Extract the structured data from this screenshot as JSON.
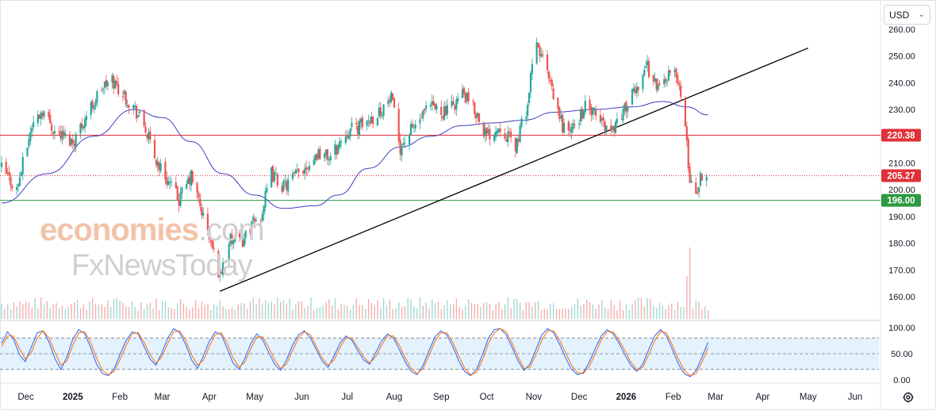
{
  "toolbar": {
    "currency": "USD"
  },
  "watermark": {
    "line1_main": "economies",
    "line1_suffix": ".com",
    "line2": "FxNewsToday"
  },
  "colors": {
    "up": "#26a69a",
    "down": "#ef5350",
    "ma": "#3f3fbf",
    "resistance": "#e0313a",
    "support": "#2c9a41",
    "trendline": "#000000",
    "k_line": "#2962ff",
    "d_line": "#ff6d00",
    "band": "#e3f2fd"
  },
  "chart_data": [
    {
      "type": "candlestick",
      "title": "",
      "currency": "USD",
      "x_tick_labels": [
        "Dec",
        "2025",
        "Feb",
        "Mar",
        "Apr",
        "May",
        "Jun",
        "Jul",
        "Aug",
        "Sep",
        "Oct",
        "Nov",
        "Dec",
        "2026",
        "Feb",
        "Mar",
        "Apr",
        "May",
        "Jun"
      ],
      "x_tick_dates": [
        "2024-12-01",
        "2025-01-01",
        "2025-02-01",
        "2025-03-01",
        "2025-04-01",
        "2025-05-01",
        "2025-06-01",
        "2025-07-01",
        "2025-08-01",
        "2025-09-01",
        "2025-10-01",
        "2025-11-01",
        "2025-12-01",
        "2026-01-01",
        "2026-02-01",
        "2026-03-01",
        "2026-04-01",
        "2026-05-01",
        "2026-06-01"
      ],
      "y_tick_labels": [
        "260.00",
        "250.00",
        "240.00",
        "230.00",
        "220.00",
        "210.00",
        "200.00",
        "190.00",
        "180.00",
        "170.00",
        "160.00"
      ],
      "y_ticks": [
        260,
        250,
        240,
        230,
        220,
        210,
        200,
        190,
        180,
        170,
        160
      ],
      "ylim": [
        155,
        262
      ],
      "price_path": [
        [
          "2024-11-15",
          208
        ],
        [
          "2024-11-25",
          200
        ],
        [
          "2024-12-05",
          224
        ],
        [
          "2024-12-12",
          230
        ],
        [
          "2024-12-20",
          222
        ],
        [
          "2025-01-01",
          218
        ],
        [
          "2025-01-10",
          228
        ],
        [
          "2025-01-20",
          238
        ],
        [
          "2025-01-27",
          241
        ],
        [
          "2025-02-03",
          236
        ],
        [
          "2025-02-10",
          231
        ],
        [
          "2025-02-17",
          224
        ],
        [
          "2025-02-24",
          212
        ],
        [
          "2025-03-05",
          203
        ],
        [
          "2025-03-12",
          196
        ],
        [
          "2025-03-20",
          205
        ],
        [
          "2025-03-28",
          190
        ],
        [
          "2025-04-03",
          178
        ],
        [
          "2025-04-08",
          168
        ],
        [
          "2025-04-14",
          181
        ],
        [
          "2025-04-22",
          180
        ],
        [
          "2025-04-28",
          186
        ],
        [
          "2025-05-05",
          190
        ],
        [
          "2025-05-12",
          206
        ],
        [
          "2025-05-20",
          201
        ],
        [
          "2025-06-02",
          208
        ],
        [
          "2025-06-12",
          214
        ],
        [
          "2025-06-20",
          212
        ],
        [
          "2025-07-01",
          222
        ],
        [
          "2025-07-10",
          224
        ],
        [
          "2025-07-20",
          228
        ],
        [
          "2025-07-30",
          234
        ],
        [
          "2025-08-05",
          216
        ],
        [
          "2025-08-12",
          222
        ],
        [
          "2025-08-25",
          231
        ],
        [
          "2025-09-05",
          229
        ],
        [
          "2025-09-15",
          236
        ],
        [
          "2025-09-25",
          228
        ],
        [
          "2025-10-01",
          220
        ],
        [
          "2025-10-10",
          224
        ],
        [
          "2025-10-20",
          216
        ],
        [
          "2025-10-28",
          232
        ],
        [
          "2025-11-02",
          255
        ],
        [
          "2025-11-08",
          248
        ],
        [
          "2025-11-14",
          234
        ],
        [
          "2025-11-20",
          224
        ],
        [
          "2025-11-26",
          222
        ],
        [
          "2025-12-05",
          231
        ],
        [
          "2025-12-15",
          226
        ],
        [
          "2025-12-22",
          222
        ],
        [
          "2026-01-02",
          232
        ],
        [
          "2026-01-08",
          238
        ],
        [
          "2026-01-14",
          247
        ],
        [
          "2026-01-22",
          238
        ],
        [
          "2026-01-30",
          244
        ],
        [
          "2026-02-04",
          242
        ],
        [
          "2026-02-07",
          232
        ],
        [
          "2026-02-09",
          222
        ],
        [
          "2026-02-12",
          204
        ],
        [
          "2026-02-16",
          199
        ],
        [
          "2026-02-20",
          206
        ],
        [
          "2026-02-23",
          205
        ]
      ],
      "last_price": 205.27,
      "series": [
        {
          "name": "",
          "kind": "moving-average",
          "points": [
            [
              "2024-11-15",
              195
            ],
            [
              "2024-12-15",
              206
            ],
            [
              "2025-01-15",
              220
            ],
            [
              "2025-02-10",
              230
            ],
            [
              "2025-03-01",
              227
            ],
            [
              "2025-03-20",
              218
            ],
            [
              "2025-04-10",
              206
            ],
            [
              "2025-05-01",
              198
            ],
            [
              "2025-05-20",
              193
            ],
            [
              "2025-06-10",
              194
            ],
            [
              "2025-06-25",
              198
            ],
            [
              "2025-07-15",
              208
            ],
            [
              "2025-08-05",
              216
            ],
            [
              "2025-08-25",
              220
            ],
            [
              "2025-09-15",
              224
            ],
            [
              "2025-10-05",
              225
            ],
            [
              "2025-10-25",
              226
            ],
            [
              "2025-11-15",
              229
            ],
            [
              "2025-12-10",
              230
            ],
            [
              "2026-01-05",
              231
            ],
            [
              "2026-01-25",
              233
            ],
            [
              "2026-02-10",
              231
            ],
            [
              "2026-02-24",
              228
            ]
          ]
        }
      ],
      "annotations": [
        {
          "kind": "horizontal-line",
          "value": 220.38,
          "label": "220.38",
          "color": "#e0313a"
        },
        {
          "kind": "horizontal-line",
          "value": 196.0,
          "label": "196.00",
          "color": "#2c9a41"
        },
        {
          "kind": "price-line",
          "value": 205.27,
          "label": "205.27",
          "color": "#e0313a"
        },
        {
          "kind": "trendline",
          "from": [
            "2025-04-08",
            162
          ],
          "to": [
            "2026-05-01",
            253
          ],
          "color": "#000000"
        }
      ],
      "volume_spikes": [
        {
          "date": "2025-04-07",
          "value": 1.0
        },
        {
          "date": "2025-04-09",
          "value": 1.0
        },
        {
          "date": "2025-08-01",
          "value": 0.78
        },
        {
          "date": "2025-10-10",
          "value": 0.7
        },
        {
          "date": "2025-11-01",
          "value": 1.2
        },
        {
          "date": "2025-11-07",
          "value": 0.8
        },
        {
          "date": "2026-02-10",
          "value": 0.9
        },
        {
          "date": "2026-02-12",
          "value": 1.5
        }
      ]
    },
    {
      "type": "line",
      "title": "",
      "y_tick_labels": [
        "100.00",
        "50.00",
        "0.00"
      ],
      "y_ticks": [
        100,
        50,
        0
      ],
      "ylim": [
        -5,
        105
      ],
      "band": [
        20,
        80
      ],
      "series": [
        {
          "name": "",
          "values": [
            70,
            92,
            78,
            48,
            35,
            62,
            90,
            94,
            72,
            40,
            20,
            44,
            78,
            96,
            88,
            62,
            30,
            12,
            8,
            22,
            50,
            76,
            92,
            88,
            64,
            40,
            28,
            52,
            80,
            98,
            90,
            68,
            38,
            22,
            46,
            74,
            92,
            86,
            60,
            32,
            20,
            42,
            70,
            88,
            76,
            52,
            30,
            18,
            38,
            66,
            86,
            94,
            80,
            58,
            36,
            24,
            46,
            70,
            84,
            76,
            56,
            38,
            30,
            52,
            74,
            88,
            80,
            58,
            34,
            16,
            10,
            28,
            56,
            82,
            94,
            86,
            64,
            36,
            16,
            8,
            20,
            48,
            80,
            96,
            98,
            86,
            62,
            36,
            18,
            30,
            58,
            86,
            98,
            90,
            68,
            42,
            20,
            10,
            14,
            34,
            60,
            84,
            96,
            88,
            70,
            48,
            28,
            16,
            30,
            58,
            84,
            96,
            84,
            58,
            30,
            12,
            6,
            18,
            44,
            72
          ]
        },
        {
          "name": "",
          "values": [
            64,
            84,
            84,
            60,
            40,
            52,
            80,
            94,
            80,
            52,
            28,
            36,
            66,
            90,
            92,
            72,
            42,
            18,
            10,
            16,
            40,
            66,
            88,
            90,
            72,
            48,
            32,
            44,
            70,
            92,
            94,
            76,
            48,
            28,
            38,
            64,
            86,
            90,
            70,
            42,
            24,
            34,
            60,
            82,
            82,
            62,
            38,
            22,
            30,
            56,
            80,
            92,
            86,
            64,
            42,
            28,
            38,
            62,
            80,
            80,
            62,
            44,
            32,
            44,
            66,
            84,
            84,
            66,
            42,
            22,
            12,
            22,
            46,
            74,
            90,
            90,
            72,
            46,
            22,
            10,
            14,
            38,
            70,
            90,
            98,
            92,
            70,
            44,
            22,
            24,
            48,
            76,
            94,
            94,
            76,
            52,
            28,
            14,
            12,
            26,
            50,
            76,
            92,
            92,
            76,
            56,
            34,
            20,
            24,
            48,
            74,
            92,
            90,
            66,
            40,
            18,
            8,
            12,
            34,
            62
          ]
        }
      ]
    }
  ]
}
